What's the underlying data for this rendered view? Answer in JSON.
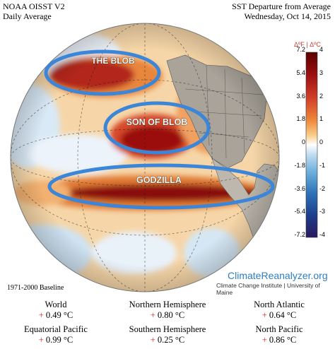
{
  "header": {
    "left_line1": "NOAA OISST V2",
    "left_line2": "Daily Average",
    "right_line1": "SST Departure from Average",
    "right_line2": "Wednesday, Oct 14, 2015"
  },
  "annotations": {
    "blob": "THE BLOB",
    "son_of_blob": "SON OF BLOB",
    "godzilla": "GODZILLA"
  },
  "color_scale": {
    "header": "ΔºF | ΔºC",
    "fahrenheit_ticks": [
      "7.2",
      "5.4",
      "3.6",
      "1.8",
      "0",
      "-1.8",
      "-3.6",
      "-5.4",
      "-7.2"
    ],
    "celsius_ticks": [
      "4",
      "3",
      "2",
      "1",
      "0",
      "-1",
      "-2",
      "-3",
      "-4"
    ],
    "colors": [
      "#5a0000",
      "#9b0f0f",
      "#d2402a",
      "#ef8a3c",
      "#f9cf8a",
      "#ffffff",
      "#b9d9ee",
      "#6aaedb",
      "#2f73b8",
      "#1c3f8c",
      "#2a1a5e"
    ]
  },
  "branding": {
    "site": "ClimateReanalyzer.org",
    "subtitle": "Climate Change Institute | University of Maine"
  },
  "baseline": "1971-2000 Baseline",
  "stats": [
    {
      "label": "World",
      "value": "+ 0.49 °C"
    },
    {
      "label": "Northern Hemisphere",
      "value": "+ 0.80 °C"
    },
    {
      "label": "North Atlantic",
      "value": "+ 0.64 °C"
    },
    {
      "label": "Equatorial Pacific",
      "value": "+ 0.99 °C"
    },
    {
      "label": "Southern Hemisphere",
      "value": "+ 0.25 °C"
    },
    {
      "label": "North Pacific",
      "value": "+ 0.86 °C"
    }
  ]
}
